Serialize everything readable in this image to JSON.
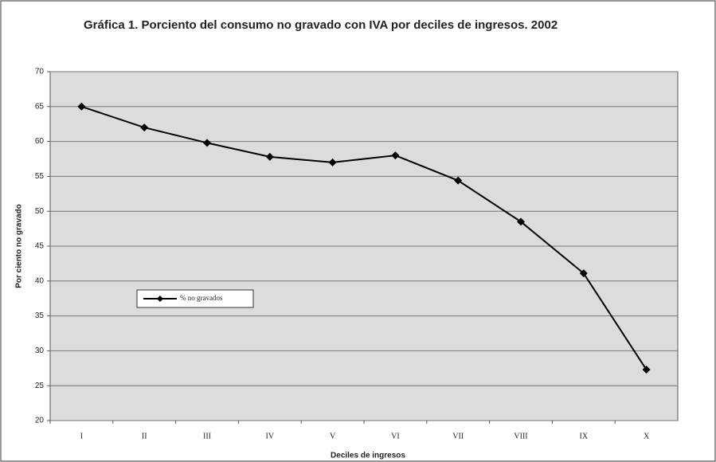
{
  "chart_data": {
    "type": "line",
    "title": "Gráfica 1. Porciento del consumo no gravado con IVA por deciles de ingresos. 2002",
    "x_label": "Deciles de ingresos",
    "y_label": "Por ciento no gravado",
    "categories": [
      "I",
      "II",
      "III",
      "IV",
      "V",
      "VI",
      "VII",
      "VIII",
      "IX",
      "X"
    ],
    "series": [
      {
        "name": "% no gravados",
        "color": "#000000",
        "values": [
          65,
          62,
          59.8,
          57.8,
          57,
          58,
          54.4,
          48.5,
          41.1,
          27.3
        ]
      }
    ],
    "ylim": [
      20,
      70
    ],
    "yticks": [
      20,
      25,
      30,
      35,
      40,
      45,
      50,
      55,
      60,
      65,
      70
    ],
    "grid": true,
    "legend": "left"
  }
}
